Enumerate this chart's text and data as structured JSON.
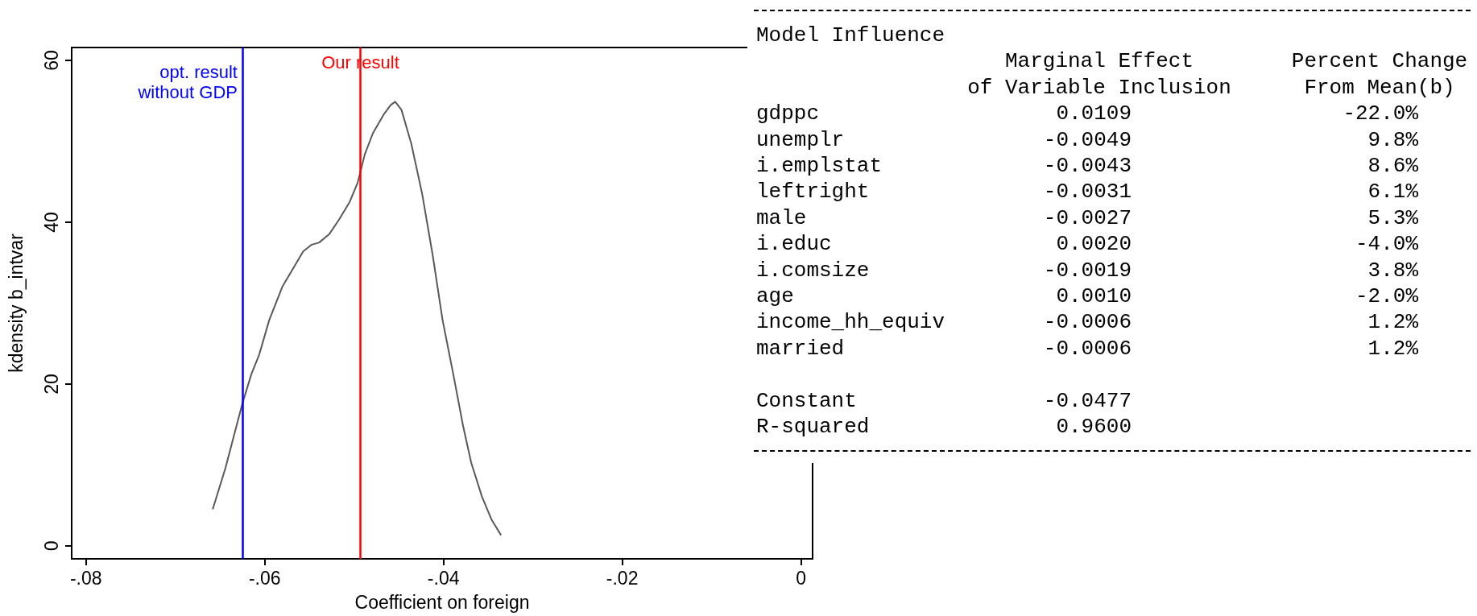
{
  "chart_data": [
    {
      "type": "line",
      "xlabel": "Coefficient on foreign",
      "ylabel": "kdensity b_intvar",
      "x": [
        -0.0658,
        -0.0644,
        -0.0625,
        -0.0615,
        -0.0606,
        -0.0595,
        -0.058,
        -0.0566,
        -0.0557,
        -0.0548,
        -0.0539,
        -0.0528,
        -0.0517,
        -0.0505,
        -0.0496,
        -0.0488,
        -0.0479,
        -0.0467,
        -0.0459,
        -0.0454,
        -0.0447,
        -0.0436,
        -0.0424,
        -0.0412,
        -0.0401,
        -0.0389,
        -0.0378,
        -0.0369,
        -0.0357,
        -0.0346,
        -0.0336
      ],
      "series": [
        {
          "color": "#595959",
          "values": [
            4.6,
            9.6,
            17.6,
            21.2,
            23.7,
            27.9,
            32.1,
            34.7,
            36.4,
            37.2,
            37.5,
            38.5,
            40.3,
            42.5,
            44.9,
            48.4,
            51,
            53.3,
            54.5,
            54.9,
            53.9,
            49.7,
            43.6,
            35.9,
            27.9,
            21.2,
            14.8,
            10.3,
            6.1,
            3.2,
            1.4
          ]
        }
      ],
      "xlim": [
        -0.0816,
        0.0013
      ],
      "ylim": [
        -1.6,
        61.6
      ],
      "xticks": [
        {
          "value": -0.08,
          "label": "-.08"
        },
        {
          "value": -0.06,
          "label": "-.06"
        },
        {
          "value": -0.04,
          "label": "-.04"
        },
        {
          "value": -0.02,
          "label": "-.02"
        },
        0
      ],
      "yticks": [
        0,
        20,
        40,
        60
      ],
      "ref_lines": [
        {
          "axis": "x",
          "value": -0.0625,
          "label": "opt. result\nwithout GDP",
          "color": "#0000ff"
        },
        {
          "axis": "x",
          "value": -0.0493,
          "label": "Our result",
          "color": "#ff0000"
        }
      ],
      "grid": false,
      "marker": "none",
      "line_style": "solid"
    },
    {
      "type": "other",
      "title": "Model Influence",
      "categories": [
        "gdppc",
        "unemplr",
        "i.emplstat",
        "leftright",
        "male",
        "i.educ",
        "i.comsize",
        "age",
        "income_hh_equiv",
        "married",
        "Constant",
        "R-squared"
      ],
      "series": [
        {
          "name": "Marginal Effect\nof Variable Inclusion",
          "values": [
            0.0109,
            -0.0049,
            -0.0043,
            -0.0031,
            -0.0027,
            0.002,
            -0.0019,
            0.001,
            -0.0006,
            -0.0006,
            -0.0477,
            0.96
          ],
          "value_labels": [
            "0.0109",
            "-0.0049",
            "-0.0043",
            "-0.0031",
            "-0.0027",
            "0.0020",
            "-0.0019",
            "0.0010",
            "-0.0006",
            "-0.0006",
            "-0.0477",
            "0.9600"
          ]
        },
        {
          "name": "Percent Change\nFrom Mean(b)",
          "values": [
            -22.0,
            9.8,
            8.6,
            6.1,
            5.3,
            -4.0,
            3.8,
            -2.0,
            1.2,
            1.2,
            null,
            null
          ],
          "value_labels": [
            "-22.0%",
            "9.8%",
            "8.6%",
            "6.1%",
            "5.3%",
            "-4.0%",
            "3.8%",
            "-2.0%",
            "1.2%",
            "1.2%",
            null,
            null
          ]
        }
      ]
    }
  ]
}
